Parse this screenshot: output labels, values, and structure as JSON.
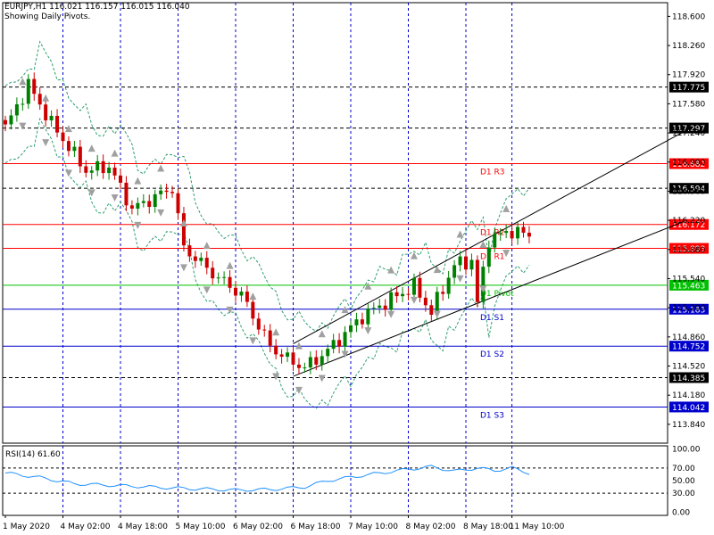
{
  "header": {
    "title": "EURJPY,H1  116.021 116.157 116.015 116.040",
    "subtitle": "Showing Daily Pivots."
  },
  "colors": {
    "bull": "#008000",
    "bear": "#cc0000",
    "red_line": "#ff0000",
    "green_line": "#00c000",
    "blue_line": "#0000cc",
    "dark_line": "#000000",
    "band": "#2e9e6e",
    "rsi": "#1e90ff",
    "fractal": "#a0a0a0"
  },
  "chart_data": [
    {
      "type": "candlestick",
      "symbol": "EURJPY",
      "timeframe": "H1",
      "ylim": [
        113.62,
        118.76
      ],
      "y_ticks": [
        "118.600",
        "118.260",
        "117.920",
        "117.580",
        "117.240",
        "116.900",
        "116.560",
        "116.220",
        "115.880",
        "115.540",
        "115.200",
        "114.860",
        "114.520",
        "114.180",
        "113.840"
      ],
      "x_ticks": [
        "1 May 2020",
        "4 May 02:00",
        "4 May 18:00",
        "5 May 10:00",
        "6 May 02:00",
        "6 May 18:00",
        "7 May 10:00",
        "8 May 02:00",
        "8 May 18:00",
        "11 May 10:00"
      ],
      "x_tick_index": [
        0,
        10,
        20,
        30,
        40,
        50,
        60,
        70,
        80,
        88
      ],
      "grid": "dashed-vertical",
      "horizontal_levels": [
        {
          "price": 117.775,
          "label": "117.775",
          "style": "black-dashed",
          "tag": ""
        },
        {
          "price": 117.297,
          "label": "117.297",
          "style": "black-dashed",
          "tag": ""
        },
        {
          "price": 116.882,
          "label": "116.882",
          "style": "red",
          "tag": "D1 R3"
        },
        {
          "price": 116.594,
          "label": "116.594",
          "style": "black-dashed",
          "tag": ""
        },
        {
          "price": 116.172,
          "label": "116.172",
          "style": "red",
          "tag": "D1 R2"
        },
        {
          "price": 115.893,
          "label": "115.893",
          "style": "red",
          "tag": "D1 R1"
        },
        {
          "price": 115.463,
          "label": "115.463",
          "style": "green",
          "tag": "D1 Pivot"
        },
        {
          "price": 115.183,
          "label": "115.183",
          "style": "blue",
          "tag": "D1 S1"
        },
        {
          "price": 114.752,
          "label": "114.752",
          "style": "blue",
          "tag": "D1 S2"
        },
        {
          "price": 114.385,
          "label": "114.385",
          "style": "black-dashed",
          "tag": ""
        },
        {
          "price": 114.042,
          "label": "114.042",
          "style": "blue",
          "tag": "D1 S3"
        }
      ],
      "trend_lines": [
        {
          "from": [
            50,
            114.78
          ],
          "to": [
            118,
            117.26
          ]
        },
        {
          "from": [
            50,
            114.4
          ],
          "to": [
            118,
            116.21
          ]
        }
      ],
      "key_points": [
        {
          "index": 0,
          "price": 117.3
        },
        {
          "index": 4,
          "price": 117.8
        },
        {
          "index": 8,
          "price": 117.35
        },
        {
          "index": 14,
          "price": 116.8
        },
        {
          "index": 18,
          "price": 116.85
        },
        {
          "index": 22,
          "price": 116.35
        },
        {
          "index": 29,
          "price": 116.6
        },
        {
          "index": 31,
          "price": 115.9
        },
        {
          "index": 36,
          "price": 115.6
        },
        {
          "index": 41,
          "price": 115.35
        },
        {
          "index": 46,
          "price": 114.75
        },
        {
          "index": 49,
          "price": 114.6
        },
        {
          "index": 52,
          "price": 114.5
        },
        {
          "index": 56,
          "price": 114.7
        },
        {
          "index": 62,
          "price": 115.1
        },
        {
          "index": 67,
          "price": 115.3
        },
        {
          "index": 71,
          "price": 115.45
        },
        {
          "index": 74,
          "price": 115.15
        },
        {
          "index": 78,
          "price": 115.7
        },
        {
          "index": 81,
          "price": 115.75
        },
        {
          "index": 82,
          "price": 115.25
        },
        {
          "index": 84,
          "price": 116.0
        },
        {
          "index": 88,
          "price": 116.1
        },
        {
          "index": 91,
          "price": 116.04
        }
      ]
    },
    {
      "type": "line",
      "name": "RSI(14) 61.60",
      "ylim": [
        -5,
        105
      ],
      "y_ticks": [
        "100.00",
        "70.00",
        "50.00",
        "30.00",
        "0.00"
      ],
      "levels": [
        70,
        30
      ],
      "key_points": [
        {
          "index": 0,
          "value": 62
        },
        {
          "index": 6,
          "value": 55
        },
        {
          "index": 12,
          "value": 45
        },
        {
          "index": 20,
          "value": 42
        },
        {
          "index": 30,
          "value": 38
        },
        {
          "index": 40,
          "value": 35
        },
        {
          "index": 46,
          "value": 36
        },
        {
          "index": 52,
          "value": 40
        },
        {
          "index": 56,
          "value": 50
        },
        {
          "index": 62,
          "value": 58
        },
        {
          "index": 70,
          "value": 68
        },
        {
          "index": 74,
          "value": 72
        },
        {
          "index": 78,
          "value": 65
        },
        {
          "index": 82,
          "value": 70
        },
        {
          "index": 85,
          "value": 66
        },
        {
          "index": 88,
          "value": 70
        },
        {
          "index": 91,
          "value": 62
        }
      ]
    }
  ]
}
